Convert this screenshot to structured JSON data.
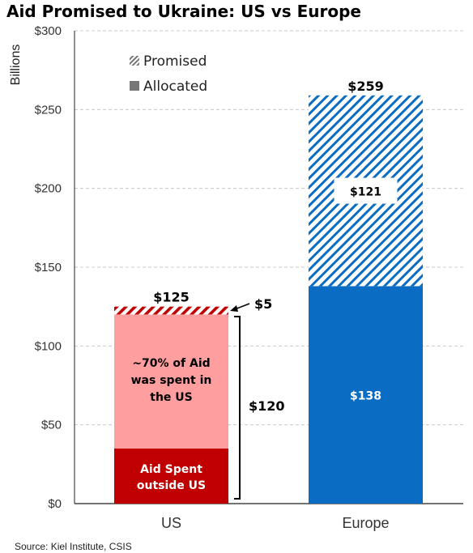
{
  "chart_data": {
    "type": "bar",
    "stacked": true,
    "title": "Aid Promised to Ukraine: US vs Europe",
    "ylabel": "Billions",
    "ylim": [
      0,
      300
    ],
    "yticks": [
      0,
      50,
      100,
      150,
      200,
      250,
      300
    ],
    "ytick_labels": [
      "$0",
      "$50",
      "$100",
      "$150",
      "$200",
      "$250",
      "$300"
    ],
    "categories": [
      "US",
      "Europe"
    ],
    "grid": true,
    "legend": {
      "placement": "top-left",
      "entries": [
        {
          "label": "Promised",
          "style": "hatched"
        },
        {
          "label": "Allocated",
          "style": "solid"
        }
      ]
    },
    "bars": [
      {
        "category": "US",
        "total": 125,
        "total_label": "$125",
        "segments": [
          {
            "value": 35,
            "color": "#c00000",
            "hatched": false,
            "label": "Aid Spent outside US"
          },
          {
            "value": 85,
            "color": "#ff9e9e",
            "hatched": false,
            "label": "~70% of Aid was spent in the US"
          },
          {
            "value": 5,
            "color": "#c00000",
            "hatched": true,
            "label": ""
          }
        ]
      },
      {
        "category": "Europe",
        "total": 259,
        "total_label": "$259",
        "segments": [
          {
            "value": 138,
            "color": "#0a6cc2",
            "hatched": false,
            "label": "$138"
          },
          {
            "value": 121,
            "color": "#0a6cc2",
            "hatched": true,
            "label": "$121"
          }
        ]
      }
    ],
    "annotations": [
      {
        "text": "$5",
        "refers_to": "US promised portion"
      },
      {
        "text": "$120",
        "refers_to": "US allocated portion"
      }
    ]
  },
  "source": "Source: Kiel Institute, CSIS"
}
